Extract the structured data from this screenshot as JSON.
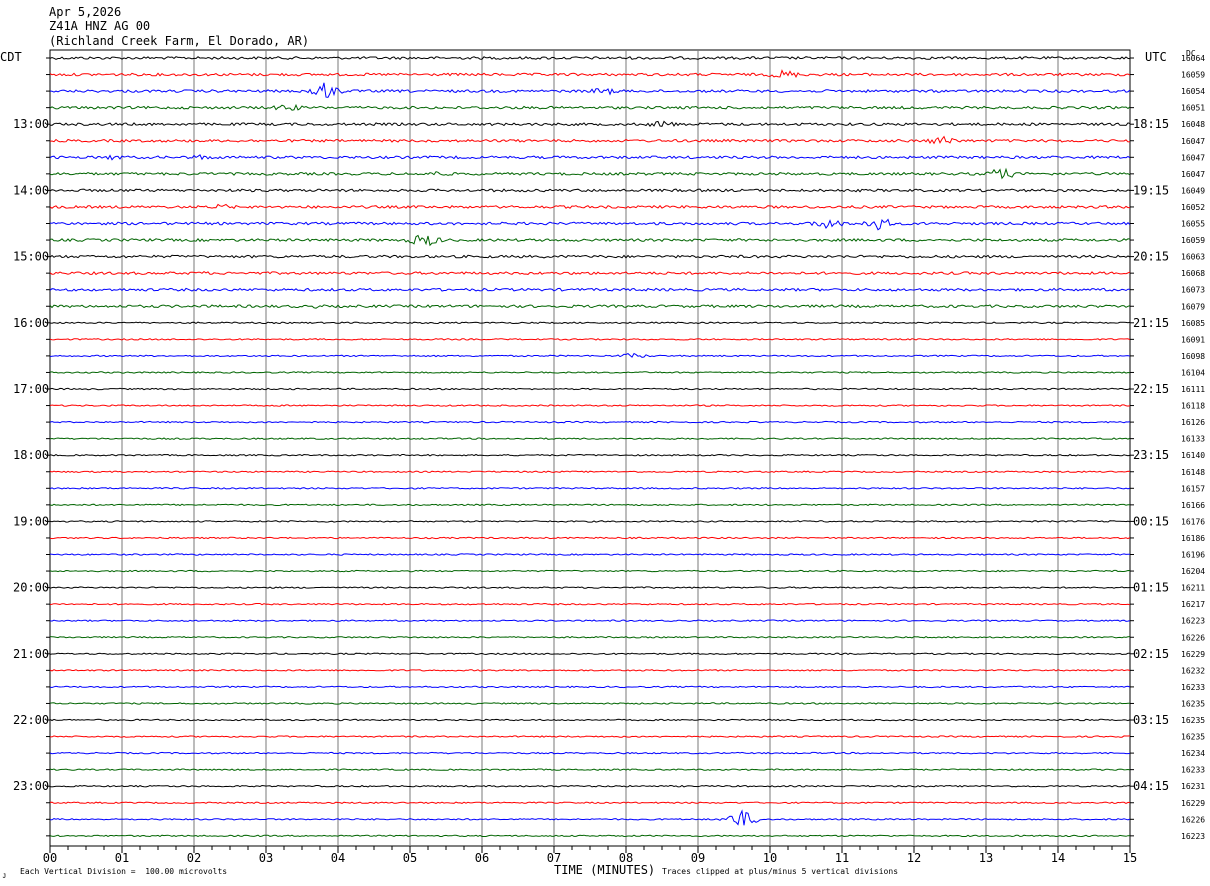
{
  "header": {
    "date": "Apr 5,2026",
    "station": "Z41A HNZ AG 00",
    "location": "(Richland Creek Farm, El Dorado, AR)"
  },
  "left_axis_title": "CDT",
  "right_axis_title": "UTC",
  "dc_label": "DC",
  "footer": {
    "scale_note": "Each Vertical Division =  100.00 microvolts",
    "xlabel": "TIME (MINUTES)",
    "clip_note": "Traces clipped at plus/minus 5 vertical divisions",
    "corner_mark": "ᴊ"
  },
  "colors": {
    "black": "#000000",
    "red": "#ff0000",
    "blue": "#0000ff",
    "green": "#006400",
    "grid": "#7a7a7a"
  },
  "chart_data": {
    "type": "line",
    "subtype": "helicorder",
    "xlabel": "TIME (MINUTES)",
    "x_ticks": [
      "00",
      "01",
      "02",
      "03",
      "04",
      "05",
      "06",
      "07",
      "08",
      "09",
      "10",
      "11",
      "12",
      "13",
      "14",
      "15"
    ],
    "xlim": [
      0,
      15
    ],
    "left_hour_labels": [
      "13:00",
      "14:00",
      "15:00",
      "16:00",
      "17:00",
      "18:00",
      "19:00",
      "20:00",
      "21:00",
      "22:00",
      "23:00"
    ],
    "right_hour_labels": [
      "18:15",
      "19:15",
      "20:15",
      "21:15",
      "22:15",
      "23:15",
      "00:15",
      "01:15",
      "02:15",
      "03:15",
      "04:15"
    ],
    "trace_colors_cycle": [
      "black",
      "red",
      "blue",
      "green"
    ],
    "dc_values": [
      "16064",
      "16059",
      "16054",
      "16051",
      "16048",
      "16047",
      "16047",
      "16047",
      "16049",
      "16052",
      "16055",
      "16059",
      "16063",
      "16068",
      "16073",
      "16079",
      "16085",
      "16091",
      "16098",
      "16104",
      "16111",
      "16118",
      "16126",
      "16133",
      "16140",
      "16148",
      "16157",
      "16166",
      "16176",
      "16186",
      "16196",
      "16204",
      "16211",
      "16217",
      "16223",
      "16226",
      "16229",
      "16232",
      "16233",
      "16235",
      "16235",
      "16235",
      "16234",
      "16233",
      "16231",
      "16229",
      "16226",
      "16223"
    ],
    "events": [
      {
        "row": 1,
        "minute": 10.2,
        "amp": 5
      },
      {
        "row": 2,
        "minute": 3.8,
        "amp": 9
      },
      {
        "row": 2,
        "minute": 7.7,
        "amp": 4
      },
      {
        "row": 3,
        "minute": 3.3,
        "amp": 4
      },
      {
        "row": 4,
        "minute": 8.5,
        "amp": 4
      },
      {
        "row": 5,
        "minute": 12.4,
        "amp": 5
      },
      {
        "row": 6,
        "minute": 0.9,
        "amp": 3
      },
      {
        "row": 6,
        "minute": 2.1,
        "amp": 3
      },
      {
        "row": 7,
        "minute": 5.4,
        "amp": 3
      },
      {
        "row": 7,
        "minute": 13.2,
        "amp": 6
      },
      {
        "row": 9,
        "minute": 2.4,
        "amp": 3
      },
      {
        "row": 10,
        "minute": 10.8,
        "amp": 6
      },
      {
        "row": 10,
        "minute": 11.5,
        "amp": 7
      },
      {
        "row": 11,
        "minute": 5.2,
        "amp": 7
      },
      {
        "row": 13,
        "minute": 2.1,
        "amp": 2
      },
      {
        "row": 15,
        "minute": 3.7,
        "amp": 2
      },
      {
        "row": 18,
        "minute": 8.1,
        "amp": 3
      },
      {
        "row": 46,
        "minute": 9.6,
        "amp": 9
      }
    ]
  }
}
